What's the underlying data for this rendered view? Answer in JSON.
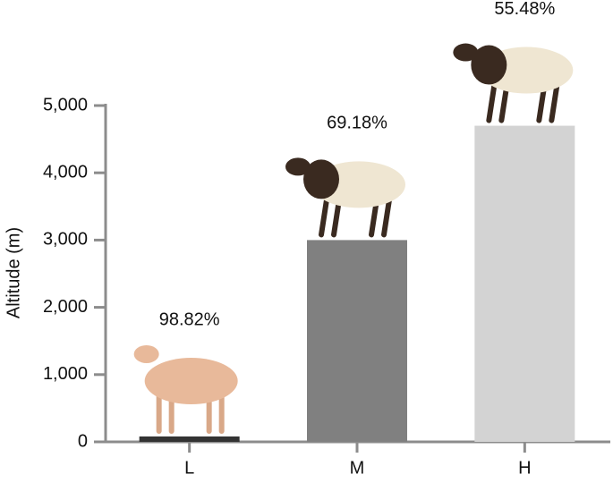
{
  "chart_data": {
    "type": "bar",
    "y_label": "Altitude (m)",
    "categories": [
      "L",
      "M",
      "H"
    ],
    "values": [
      80,
      3000,
      4700
    ],
    "colors": [
      "#333333",
      "#808080",
      "#d3d3d3"
    ],
    "annotations": [
      "98.82%",
      "69.18%",
      "55.48%"
    ],
    "ylim": [
      0,
      5000
    ],
    "yticks": [
      0,
      {
        "value": 1000,
        "label": "1,000"
      },
      {
        "value": 2000,
        "label": "2,000"
      },
      {
        "value": 3000,
        "label": "3,000"
      },
      {
        "value": 4000,
        "label": "4,000"
      },
      {
        "value": 5000,
        "label": "5,000"
      }
    ]
  }
}
